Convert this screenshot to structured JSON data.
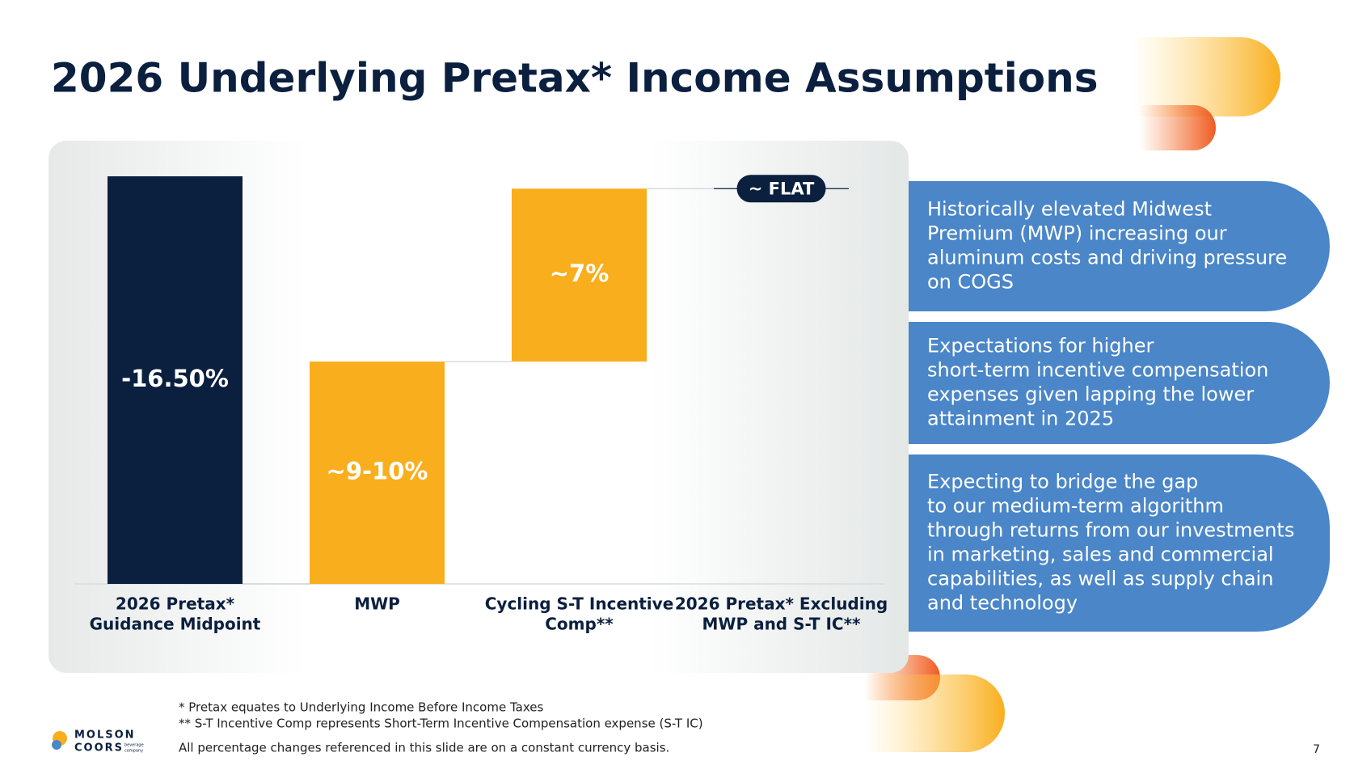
{
  "title": "2026 Underlying Pretax* Income Assumptions",
  "chart_data": {
    "type": "waterfall",
    "categories": [
      [
        "2026 Pretax*",
        "Guidance Midpoint"
      ],
      [
        "MWP"
      ],
      [
        "Cycling S-T Incentive",
        "Comp**"
      ],
      [
        "2026 Pretax* Excluding",
        "MWP and S-T IC**"
      ]
    ],
    "values": [
      -16.5,
      9,
      7,
      0
    ],
    "value_labels": [
      "-16.50%",
      "~9-10%",
      "~7%",
      "~ FLAT"
    ],
    "colors": [
      "#0b1f3f",
      "#f9ae1d",
      "#f9ae1d",
      "#0b1f3f"
    ]
  },
  "callouts": [
    [
      "Historically elevated Midwest",
      "Premium (MWP) increasing our",
      "aluminum costs and driving pressure",
      "on COGS"
    ],
    [
      "Expectations for higher",
      "short-term incentive compensation",
      "expenses given lapping the lower",
      "attainment in 2025"
    ],
    [
      "Expecting to bridge the gap",
      "to our medium-term algorithm",
      "through returns from our investments",
      "in marketing, sales and commercial",
      "capabilities, as well as supply chain",
      "and technology"
    ]
  ],
  "footnotes": [
    "* Pretax equates to Underlying Income Before Income Taxes",
    "** S-T Incentive Comp represents Short-Term Incentive Compensation expense (S-T IC)",
    "All percentage changes referenced in this slide are on a constant currency basis."
  ],
  "logo": [
    "MOLSON",
    "COORS",
    "beverage",
    "company"
  ],
  "page_number": "7"
}
